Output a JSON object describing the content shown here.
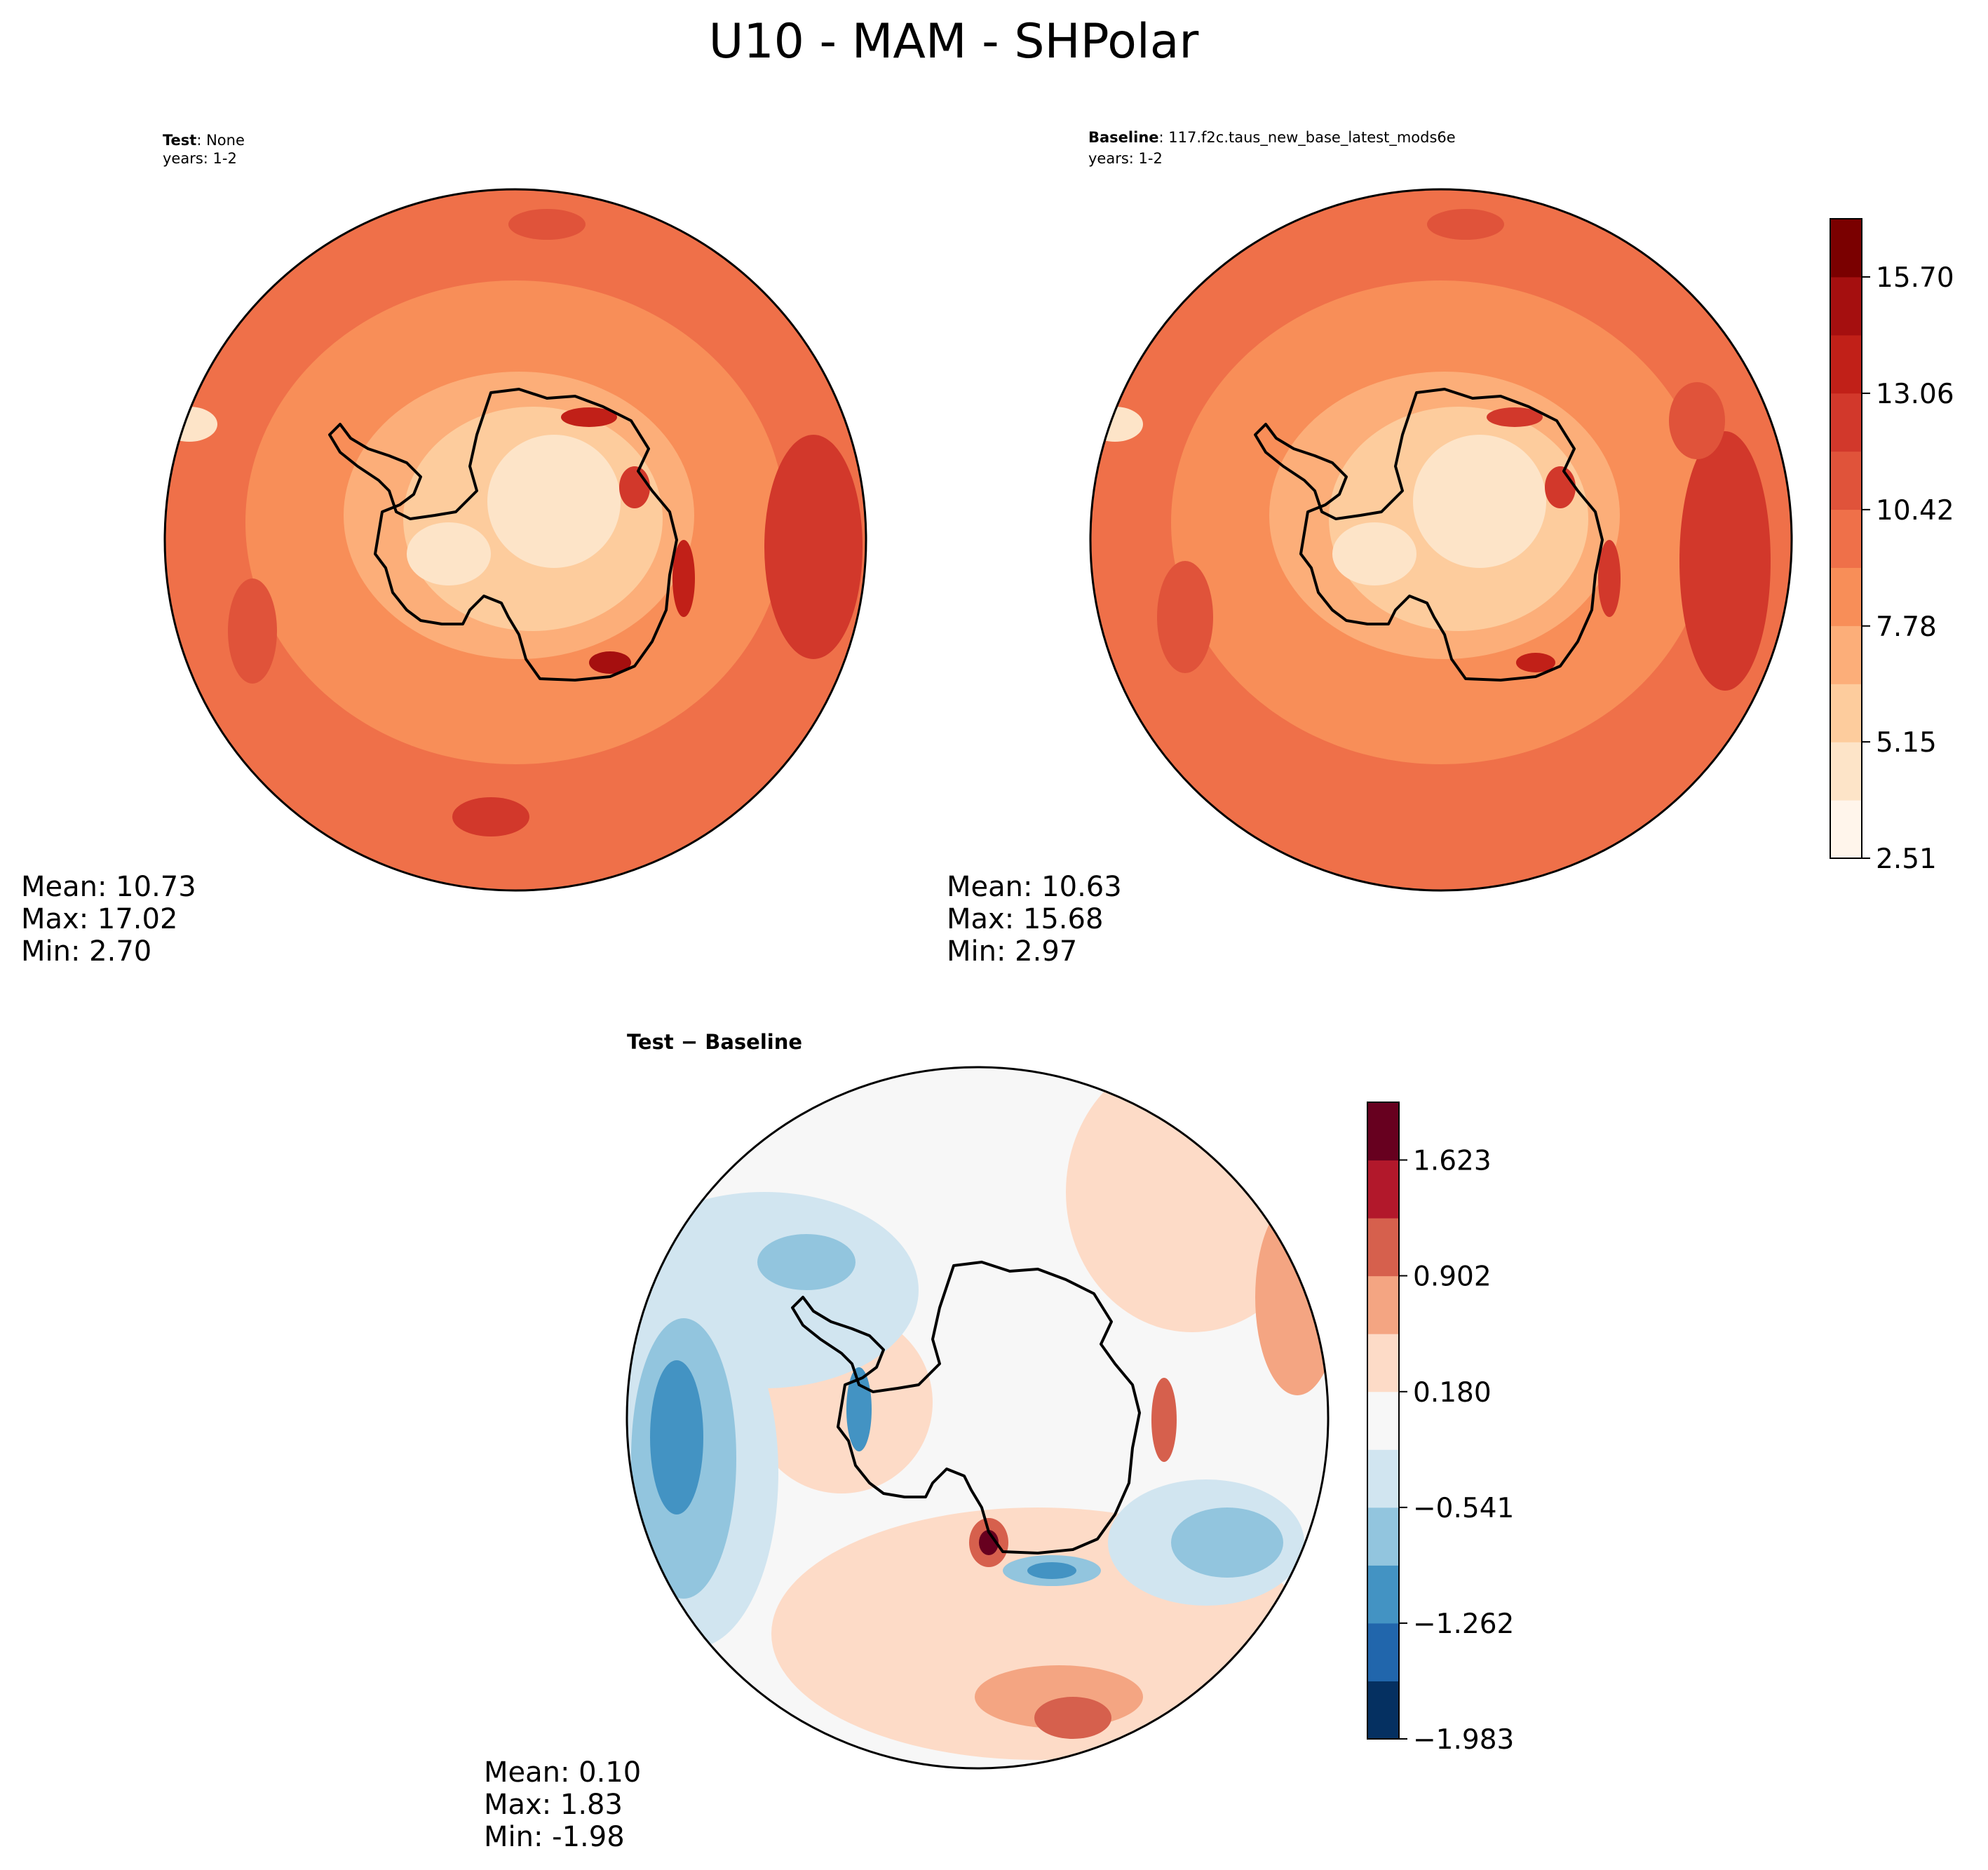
{
  "figure_title": "U10 - MAM - SHPolar",
  "panels": {
    "test": {
      "label_bold": "Test",
      "label_rest": ": None",
      "years": "years: 1-2",
      "stats": [
        "Mean: 10.73",
        "Max: 17.02",
        "Min:  2.70"
      ]
    },
    "baseline": {
      "label_bold": "Baseline",
      "label_rest": ": 117.f2c.taus_new_base_latest_mods6e",
      "years": "years: 1-2",
      "stats": [
        "Mean: 10.63",
        "Max: 15.68",
        "Min:  2.97"
      ]
    },
    "diff": {
      "title": "Test − Baseline",
      "stats": [
        "Mean:  0.10",
        "Max:  1.83",
        "Min: -1.98"
      ]
    }
  },
  "colors": {
    "main_levels": [
      "#fff5eb",
      "#fde4c8",
      "#fdcc9d",
      "#fcae79",
      "#f88e58",
      "#ef7049",
      "#e0533a",
      "#d2382b",
      "#c12018",
      "#a50f0f",
      "#7a0000"
    ],
    "diff_levels": [
      "#053061",
      "#2166ac",
      "#4393c3",
      "#92c5de",
      "#d1e5f0",
      "#f7f7f7",
      "#fddbc7",
      "#f4a582",
      "#d6604d",
      "#b2182b",
      "#67001f"
    ],
    "coast": "#000000"
  },
  "chart_data": [
    {
      "type": "contour",
      "name": "test",
      "projection": "south polar stereographic",
      "colorbar_ticks": [
        "2.51",
        "5.15",
        "7.78",
        "10.42",
        "13.06",
        "15.70"
      ],
      "colorbar_range": [
        2.51,
        17.02
      ],
      "stats": {
        "mean": 10.73,
        "max": 17.02,
        "min": 2.7
      }
    },
    {
      "type": "contour",
      "name": "baseline",
      "projection": "south polar stereographic",
      "colorbar_ticks": [
        "2.51",
        "5.15",
        "7.78",
        "10.42",
        "13.06",
        "15.70"
      ],
      "colorbar_range": [
        2.51,
        17.02
      ],
      "stats": {
        "mean": 10.63,
        "max": 15.68,
        "min": 2.97
      }
    },
    {
      "type": "contour",
      "name": "difference",
      "projection": "south polar stereographic",
      "colorbar_ticks": [
        "−1.983",
        "−1.262",
        "−0.541",
        "0.180",
        "0.902",
        "1.623"
      ],
      "colorbar_range": [
        -1.983,
        1.983
      ],
      "stats": {
        "mean": 0.1,
        "max": 1.83,
        "min": -1.98
      }
    }
  ]
}
